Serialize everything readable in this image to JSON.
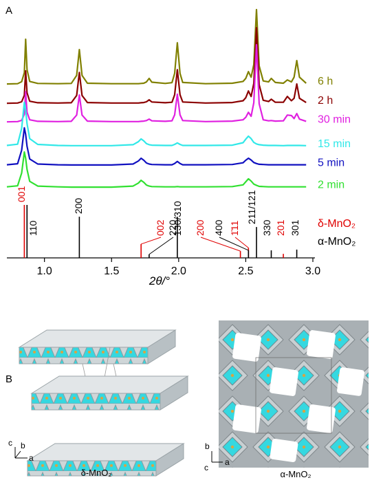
{
  "chart_data": {
    "type": "line",
    "panel_label": "A",
    "x_label": "2θ/°",
    "xlim": [
      0.72,
      3.0
    ],
    "ylim": [
      0,
      100
    ],
    "xticks": [
      {
        "value": 1,
        "label": "1.0"
      },
      {
        "value": 1.5,
        "label": "1.5"
      },
      {
        "value": 2,
        "label": "2.0"
      },
      {
        "value": 2.5,
        "label": "2.5"
      },
      {
        "value": 3,
        "label": "3.0"
      }
    ],
    "x": [
      0.72,
      0.8,
      0.83,
      0.85,
      0.86,
      0.87,
      0.89,
      0.95,
      1.1,
      1.2,
      1.24,
      1.26,
      1.28,
      1.32,
      1.5,
      1.66,
      1.7,
      1.72,
      1.74,
      1.76,
      1.78,
      1.8,
      1.9,
      1.95,
      1.97,
      1.99,
      2.01,
      2.03,
      2.2,
      2.4,
      2.48,
      2.5,
      2.52,
      2.54,
      2.56,
      2.58,
      2.6,
      2.63,
      2.67,
      2.69,
      2.72,
      2.78,
      2.81,
      2.84,
      2.86,
      2.88,
      2.9,
      2.95
    ],
    "series": [
      {
        "name": "6 h",
        "color": "#808000",
        "values": [
          69.3,
          69.4,
          70.2,
          73.8,
          87.1,
          75.0,
          70.3,
          69.5,
          69.4,
          69.5,
          72.7,
          83.0,
          72.7,
          69.6,
          69.4,
          69.4,
          69.4,
          69.5,
          69.6,
          70.1,
          71.5,
          70.0,
          69.5,
          69.8,
          73.5,
          85.7,
          73.5,
          69.9,
          69.4,
          69.6,
          70.3,
          71.5,
          74.2,
          72.0,
          77.0,
          98.9,
          76.5,
          70.5,
          70.1,
          71.5,
          69.9,
          69.6,
          70.9,
          70.1,
          72.0,
          78.6,
          72.0,
          69.6
        ]
      },
      {
        "name": "2 h",
        "color": "#8b0000",
        "values": [
          61.6,
          61.7,
          62.2,
          64.8,
          74.5,
          65.8,
          62.4,
          61.8,
          61.7,
          61.8,
          64.7,
          73.9,
          64.7,
          61.9,
          61.7,
          61.7,
          61.7,
          61.8,
          61.9,
          62.2,
          63.0,
          62.1,
          61.8,
          62.0,
          65.0,
          75.0,
          65.0,
          62.1,
          61.7,
          61.9,
          62.6,
          63.8,
          66.5,
          64.3,
          69.5,
          91.7,
          69.0,
          62.8,
          62.3,
          63.2,
          62.0,
          62.0,
          64.3,
          62.6,
          63.6,
          69.3,
          63.6,
          61.9
        ]
      },
      {
        "name": "30 min",
        "color": "#e020e0",
        "values": [
          54.2,
          54.3,
          54.8,
          57.2,
          66.2,
          58.0,
          55.0,
          54.4,
          54.3,
          54.4,
          56.9,
          64.9,
          56.9,
          54.5,
          54.3,
          54.3,
          54.3,
          54.4,
          54.5,
          54.7,
          55.3,
          54.6,
          54.4,
          54.6,
          57.0,
          65.2,
          57.0,
          54.7,
          54.3,
          54.5,
          55.0,
          56.0,
          58.0,
          56.4,
          61.8,
          84.9,
          61.4,
          55.0,
          54.6,
          54.7,
          54.5,
          54.6,
          56.9,
          56.7,
          55.5,
          57.5,
          55.3,
          54.4
        ]
      },
      {
        "name": "15 min",
        "color": "#30e8e8",
        "values": [
          44.8,
          45.3,
          51.6,
          62.0,
          59.0,
          53.5,
          47.5,
          45.2,
          44.8,
          44.7,
          44.7,
          44.7,
          44.7,
          44.7,
          44.7,
          45.1,
          46.3,
          47.4,
          46.6,
          45.5,
          45.1,
          44.9,
          44.8,
          44.8,
          45.2,
          45.8,
          45.2,
          44.8,
          44.8,
          44.9,
          45.9,
          47.3,
          48.5,
          47.5,
          46.0,
          45.4,
          45.1,
          44.9,
          44.8,
          44.8,
          44.8,
          44.7,
          44.8,
          44.8,
          44.8,
          44.8,
          44.8,
          44.7
        ]
      },
      {
        "name": "5 min",
        "color": "#1010c0",
        "values": [
          37.1,
          37.5,
          42.9,
          51.8,
          49.2,
          44.5,
          39.4,
          37.4,
          37.1,
          37.0,
          37.0,
          37.0,
          37.0,
          37.0,
          37.0,
          37.4,
          38.6,
          39.7,
          38.9,
          37.8,
          37.4,
          37.2,
          37.1,
          37.1,
          37.6,
          38.4,
          37.6,
          37.1,
          37.1,
          37.2,
          37.9,
          38.9,
          39.7,
          39.0,
          38.0,
          37.6,
          37.3,
          37.2,
          37.1,
          37.1,
          37.1,
          37.1,
          37.1,
          37.1,
          37.1,
          37.1,
          37.1,
          37.1
        ]
      },
      {
        "name": "2 min",
        "color": "#30e030",
        "values": [
          28.3,
          28.7,
          33.8,
          42.2,
          39.7,
          35.3,
          30.5,
          28.6,
          28.3,
          28.2,
          28.2,
          28.2,
          28.2,
          28.2,
          28.2,
          28.6,
          29.8,
          30.9,
          30.1,
          29.0,
          28.6,
          28.4,
          28.3,
          28.3,
          28.3,
          28.4,
          28.3,
          28.3,
          28.3,
          28.4,
          29.1,
          30.3,
          31.5,
          30.6,
          29.4,
          28.9,
          28.5,
          28.4,
          28.3,
          28.3,
          28.3,
          28.3,
          28.3,
          28.3,
          28.3,
          28.3,
          28.3,
          28.3
        ]
      }
    ],
    "references": [
      {
        "name": "δ-MnO₂",
        "color": "#e00000",
        "positions": [
          0.85,
          1.72,
          2.46,
          2.52,
          2.78
        ],
        "heights": [
          21.1,
          5.5,
          2.7,
          4,
          1.6
        ],
        "labels": [
          "001",
          "002",
          "200",
          "1̄11",
          "201"
        ]
      },
      {
        "name": "α-MnO₂",
        "color": "#000000",
        "positions": [
          0.87,
          1.26,
          1.78,
          1.99,
          2.52,
          2.58,
          2.69,
          2.88
        ],
        "heights": [
          21.1,
          16.4,
          1.4,
          16.4,
          3,
          12.3,
          3,
          3.3
        ],
        "labels": [
          "110",
          "200",
          "220",
          "130/310",
          "400",
          "211/121",
          "330",
          "301"
        ]
      }
    ]
  },
  "panel_b": {
    "panel_label": "B",
    "delta_label": "δ-MnO₂",
    "alpha_label": "α-MnO₂",
    "delta_axes": [
      "c",
      "b",
      "a"
    ],
    "alpha_axes": [
      "b",
      "c",
      "a"
    ]
  }
}
